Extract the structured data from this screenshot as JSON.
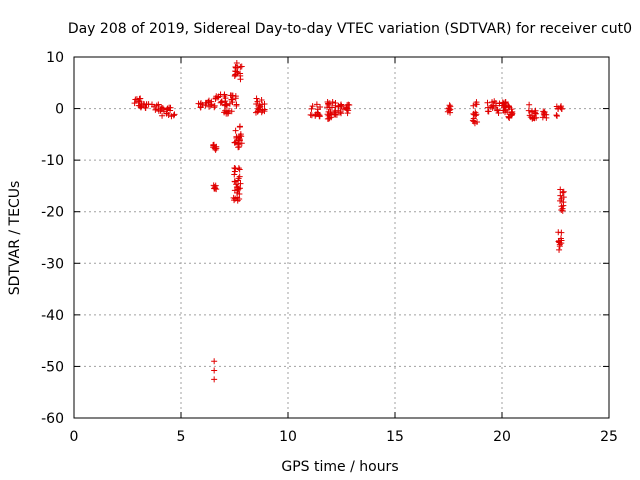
{
  "chart_data": {
    "type": "scatter",
    "title": "Day 208 of 2019, Sidereal Day-to-day VTEC variation (SDTVAR) for receiver cut0",
    "xlabel": "GPS time / hours",
    "ylabel": "SDTVAR / TECUs",
    "xlim": [
      0,
      25
    ],
    "ylim": [
      -60,
      10
    ],
    "xticks": [
      0,
      5,
      10,
      15,
      20,
      25
    ],
    "yticks": [
      -60,
      -50,
      -40,
      -30,
      -20,
      -10,
      0,
      10
    ],
    "grid": true,
    "legend": "none",
    "marker": "plus",
    "colors": {
      "points": "#e00000",
      "grid": "#a0a0a0",
      "frame": "#000000"
    },
    "clusters": [
      {
        "x": [
          2.75,
          3.1
        ],
        "y": [
          0.2,
          2.0
        ]
      },
      {
        "x": [
          3.0,
          4.1
        ],
        "y": [
          -0.5,
          1.0
        ]
      },
      {
        "x": [
          4.0,
          4.7
        ],
        "y": [
          -1.5,
          0.5
        ]
      },
      {
        "x": [
          5.8,
          6.6
        ],
        "y": [
          0.0,
          1.8
        ]
      },
      {
        "x": [
          6.6,
          7.6
        ],
        "y": [
          0.5,
          2.8
        ]
      },
      {
        "x": [
          7.0,
          7.4
        ],
        "y": [
          -1.0,
          0.0
        ]
      },
      {
        "x": [
          7.5,
          7.85
        ],
        "y": [
          5.5,
          9.0
        ]
      },
      {
        "x": [
          7.5,
          7.85
        ],
        "y": [
          -8.0,
          -3.0
        ]
      },
      {
        "x": [
          7.45,
          7.8
        ],
        "y": [
          -18.0,
          -11.5
        ]
      },
      {
        "x": [
          6.5,
          6.65
        ],
        "y": [
          -8.0,
          -7.0
        ]
      },
      {
        "x": [
          6.5,
          6.65
        ],
        "y": [
          -16.0,
          -14.8
        ]
      },
      {
        "x": [
          8.5,
          9.0
        ],
        "y": [
          -1.0,
          2.0
        ]
      },
      {
        "x": [
          11.0,
          11.5
        ],
        "y": [
          -1.5,
          1.0
        ]
      },
      {
        "x": [
          11.8,
          12.5
        ],
        "y": [
          -2.0,
          1.5
        ]
      },
      {
        "x": [
          12.4,
          13.0
        ],
        "y": [
          -1.0,
          1.0
        ]
      },
      {
        "x": [
          17.45,
          17.6
        ],
        "y": [
          -0.8,
          0.8
        ]
      },
      {
        "x": [
          18.6,
          18.85
        ],
        "y": [
          -3.0,
          1.5
        ]
      },
      {
        "x": [
          19.3,
          20.2
        ],
        "y": [
          -1.0,
          1.5
        ]
      },
      {
        "x": [
          20.1,
          20.5
        ],
        "y": [
          -2.0,
          1.5
        ]
      },
      {
        "x": [
          21.2,
          21.6
        ],
        "y": [
          -2.0,
          1.0
        ]
      },
      {
        "x": [
          21.9,
          22.1
        ],
        "y": [
          -2.0,
          -0.5
        ]
      },
      {
        "x": [
          22.5,
          22.8
        ],
        "y": [
          -2.0,
          0.5
        ]
      },
      {
        "x": [
          22.6,
          22.8
        ],
        "y": [
          -28.0,
          -23.5
        ]
      },
      {
        "x": [
          22.7,
          22.9
        ],
        "y": [
          -20.5,
          -15.0
        ]
      }
    ],
    "points": [
      {
        "x": 6.55,
        "y": -49.0
      },
      {
        "x": 6.55,
        "y": -50.8
      },
      {
        "x": 6.55,
        "y": -52.5
      }
    ]
  }
}
